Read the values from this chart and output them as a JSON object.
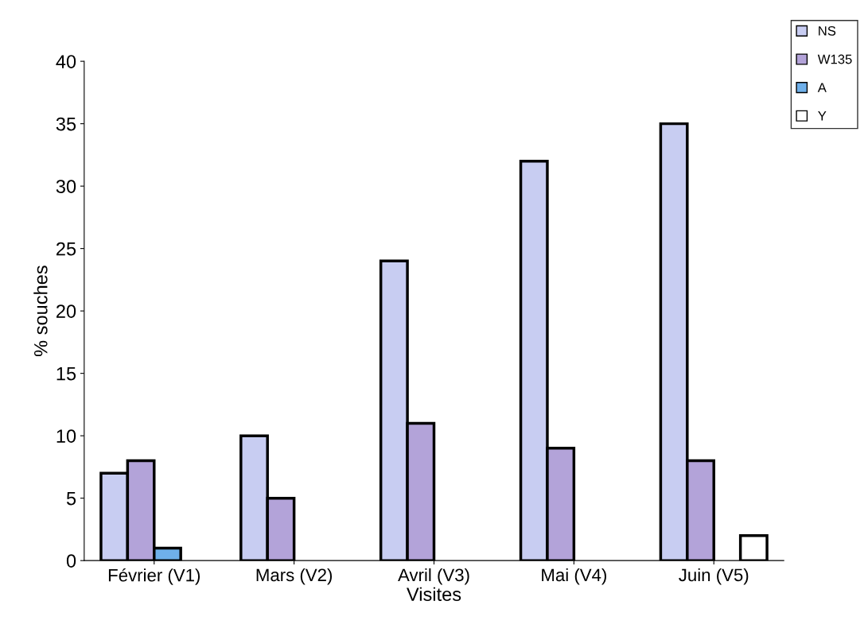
{
  "chart_data": {
    "type": "bar",
    "xlabel": "Visites",
    "ylabel": "% souches",
    "categories": [
      "Février (V1)",
      "Mars (V2)",
      "Avril (V3)",
      "Mai (V4)",
      "Juin (V5)"
    ],
    "series": [
      {
        "name": "NS",
        "color": "#c8cdf2",
        "values": [
          7,
          10,
          24,
          32,
          35
        ]
      },
      {
        "name": "W135",
        "color": "#b3a3d9",
        "values": [
          8,
          5,
          11,
          9,
          8
        ]
      },
      {
        "name": "A",
        "color": "#6fb0ea",
        "values": [
          1,
          0,
          0,
          0,
          0
        ]
      },
      {
        "name": "Y",
        "color": "#ffffff",
        "values": [
          0,
          0,
          0,
          0,
          2
        ]
      }
    ],
    "ylim": [
      0,
      40
    ],
    "yticks": [
      0,
      5,
      10,
      15,
      20,
      25,
      30,
      35,
      40
    ],
    "grid": false,
    "legend": "top right"
  }
}
